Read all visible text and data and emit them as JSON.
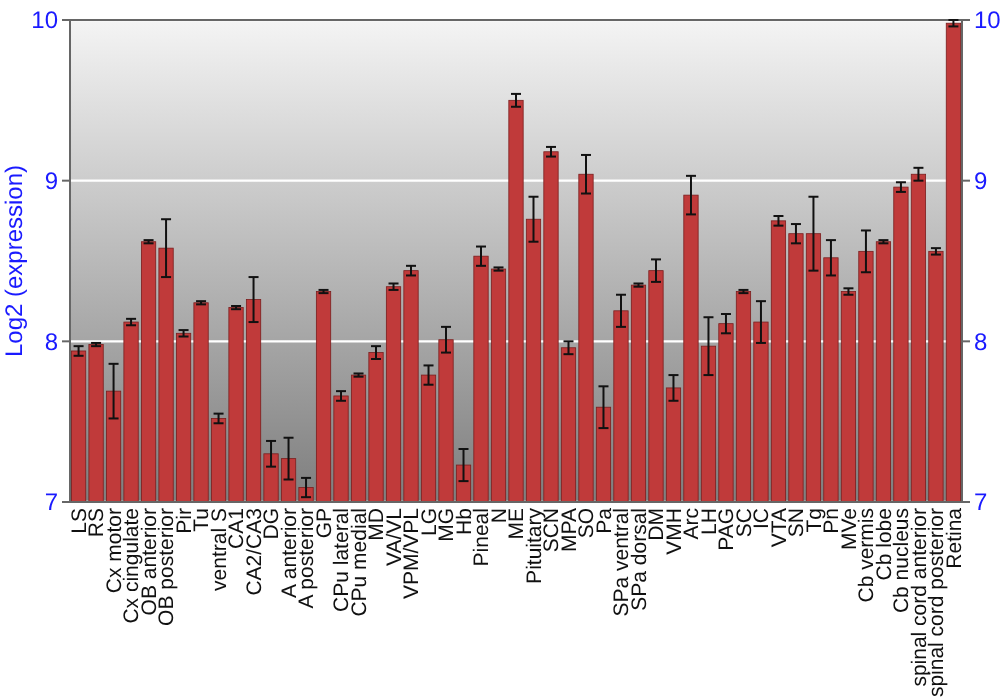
{
  "chart_data": {
    "type": "bar",
    "ylabel": "Log2 (expression)",
    "categories": [
      "LS",
      "RS",
      "Cx motor",
      "Cx cingulate",
      "OB anterior",
      "OB posterior",
      "Pir",
      "Tu",
      "ventral S",
      "CA1",
      "CA2/CA3",
      "DG",
      "A anterior",
      "A posterior",
      "GP",
      "CPu lateral",
      "CPu medial",
      "MD",
      "VA/VL",
      "VPM/VPL",
      "LG",
      "MG",
      "Hb",
      "Pineal",
      "N",
      "ME",
      "Pituitary",
      "SCN",
      "MPA",
      "SO",
      "Pa",
      "SPa ventral",
      "SPa dorsal",
      "DM",
      "VMH",
      "Arc",
      "LH",
      "PAG",
      "SC",
      "IC",
      "VTA",
      "SN",
      "Tg",
      "Pn",
      "MVe",
      "Cb vermis",
      "Cb lobe",
      "Cb nucleus",
      "spinal cord anterior",
      "spinal cord posterior",
      "Retina"
    ],
    "values": [
      7.94,
      7.98,
      7.69,
      8.12,
      8.62,
      8.58,
      8.05,
      8.24,
      7.52,
      8.21,
      8.26,
      7.3,
      7.27,
      7.09,
      8.31,
      7.66,
      7.79,
      7.93,
      8.34,
      8.44,
      7.79,
      8.01,
      7.23,
      8.53,
      8.45,
      9.5,
      8.76,
      9.18,
      7.96,
      9.04,
      7.59,
      8.19,
      8.35,
      8.44,
      7.71,
      8.91,
      7.97,
      8.11,
      8.31,
      8.12,
      8.75,
      8.67,
      8.67,
      8.52,
      8.31,
      8.56,
      8.62,
      8.96,
      9.04,
      8.56,
      9.98
    ],
    "errors": [
      0.03,
      0.01,
      0.17,
      0.02,
      0.01,
      0.18,
      0.02,
      0.01,
      0.03,
      0.01,
      0.14,
      0.08,
      0.13,
      0.06,
      0.01,
      0.03,
      0.01,
      0.04,
      0.02,
      0.03,
      0.06,
      0.08,
      0.1,
      0.06,
      0.01,
      0.04,
      0.14,
      0.03,
      0.04,
      0.12,
      0.13,
      0.1,
      0.01,
      0.07,
      0.08,
      0.12,
      0.18,
      0.06,
      0.01,
      0.13,
      0.03,
      0.06,
      0.23,
      0.11,
      0.02,
      0.13,
      0.01,
      0.03,
      0.04,
      0.02,
      0.02
    ],
    "color": "#c03a3a",
    "ylim": [
      7,
      10
    ],
    "yticks": [
      7,
      8,
      9,
      10
    ],
    "y2lim": [
      7,
      10
    ],
    "y2ticks": [
      7,
      8,
      9,
      10
    ],
    "grid": "y"
  }
}
